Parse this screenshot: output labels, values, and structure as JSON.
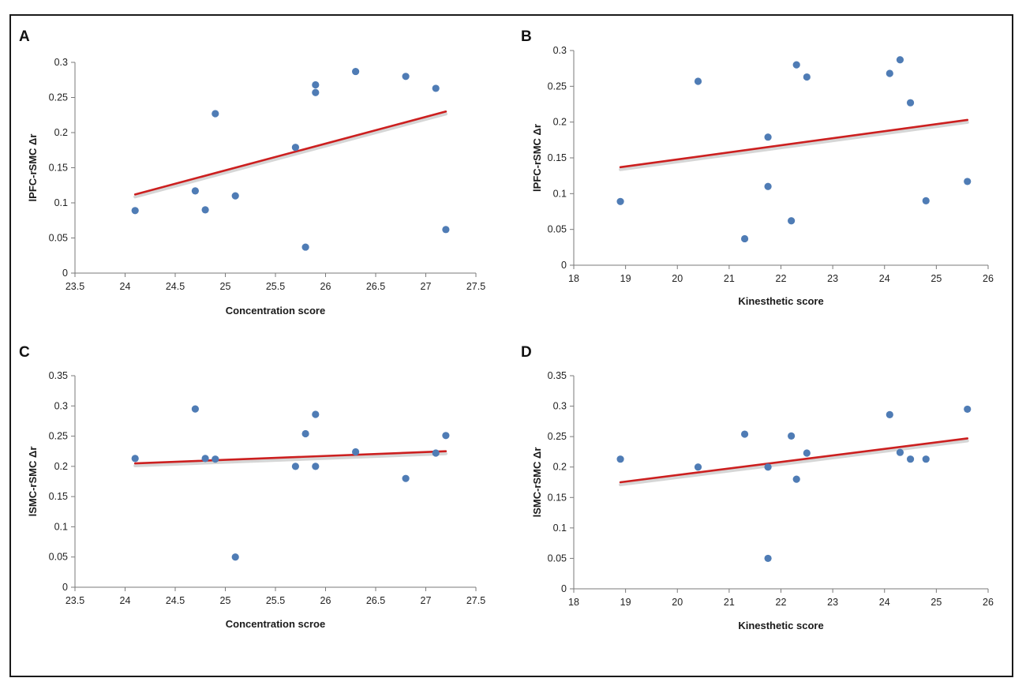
{
  "colors": {
    "point": "#4f7cb5",
    "trend": "#cc1f1f",
    "trend_shadow": "#c9c9c9",
    "axis": "#7a7a7a"
  },
  "chart_data": [
    {
      "panel": "A",
      "type": "scatter",
      "xlabel": "Concentration score",
      "ylabel": "lPFC-rSMC  Δr",
      "xlim": [
        23.5,
        27.5
      ],
      "ylim": [
        0,
        0.3
      ],
      "xticks": [
        "23.5",
        "24",
        "24.5",
        "25",
        "25.5",
        "26",
        "26.5",
        "27",
        "27.5"
      ],
      "yticks": [
        "0",
        "0.05",
        "0.1",
        "0.15",
        "0.2",
        "0.25",
        "0.3"
      ],
      "points": [
        [
          24.1,
          0.089
        ],
        [
          24.7,
          0.117
        ],
        [
          24.8,
          0.09
        ],
        [
          24.9,
          0.227
        ],
        [
          25.1,
          0.11
        ],
        [
          25.7,
          0.179
        ],
        [
          25.8,
          0.037
        ],
        [
          25.9,
          0.268
        ],
        [
          25.9,
          0.257
        ],
        [
          26.3,
          0.287
        ],
        [
          26.8,
          0.28
        ],
        [
          27.1,
          0.263
        ],
        [
          27.2,
          0.062
        ]
      ],
      "trendline": [
        [
          24.1,
          0.112
        ],
        [
          27.2,
          0.23
        ]
      ]
    },
    {
      "panel": "B",
      "type": "scatter",
      "xlabel": "Kinesthetic  score",
      "ylabel": "lPFC-rSMC  Δr",
      "xlim": [
        18,
        26
      ],
      "ylim": [
        0,
        0.3
      ],
      "xticks": [
        "18",
        "19",
        "20",
        "21",
        "22",
        "23",
        "24",
        "25",
        "26"
      ],
      "yticks": [
        "0",
        "0.05",
        "0.1",
        "0.15",
        "0.2",
        "0.25",
        "0.3"
      ],
      "points": [
        [
          18.9,
          0.089
        ],
        [
          20.4,
          0.257
        ],
        [
          21.3,
          0.037
        ],
        [
          21.75,
          0.179
        ],
        [
          21.75,
          0.11
        ],
        [
          22.2,
          0.062
        ],
        [
          22.3,
          0.28
        ],
        [
          22.5,
          0.263
        ],
        [
          24.1,
          0.268
        ],
        [
          24.3,
          0.287
        ],
        [
          24.5,
          0.227
        ],
        [
          24.8,
          0.09
        ],
        [
          25.6,
          0.117
        ]
      ],
      "trendline": [
        [
          18.9,
          0.137
        ],
        [
          25.6,
          0.203
        ]
      ]
    },
    {
      "panel": "C",
      "type": "scatter",
      "xlabel": "Concentration scroe",
      "ylabel": "lSMC-rSMC Δr",
      "xlim": [
        23.5,
        27.5
      ],
      "ylim": [
        0,
        0.35
      ],
      "xticks": [
        "23.5",
        "24",
        "24.5",
        "25",
        "25.5",
        "26",
        "26.5",
        "27",
        "27.5"
      ],
      "yticks": [
        "0",
        "0.05",
        "0.1",
        "0.15",
        "0.2",
        "0.25",
        "0.3",
        "0.35"
      ],
      "points": [
        [
          24.1,
          0.213
        ],
        [
          24.7,
          0.295
        ],
        [
          24.8,
          0.213
        ],
        [
          24.9,
          0.212
        ],
        [
          25.1,
          0.05
        ],
        [
          25.7,
          0.2
        ],
        [
          25.8,
          0.254
        ],
        [
          25.9,
          0.286
        ],
        [
          25.9,
          0.2
        ],
        [
          26.3,
          0.224
        ],
        [
          26.8,
          0.18
        ],
        [
          27.1,
          0.222
        ],
        [
          27.2,
          0.251
        ]
      ],
      "trendline": [
        [
          24.1,
          0.205
        ],
        [
          27.2,
          0.225
        ]
      ]
    },
    {
      "panel": "D",
      "type": "scatter",
      "xlabel": "Kinesthetic score",
      "ylabel": "lSMC-rSMC Δr",
      "xlim": [
        18,
        26
      ],
      "ylim": [
        0,
        0.35
      ],
      "xticks": [
        "18",
        "19",
        "20",
        "21",
        "22",
        "23",
        "24",
        "25",
        "26"
      ],
      "yticks": [
        "0",
        "0.05",
        "0.1",
        "0.15",
        "0.2",
        "0.25",
        "0.3",
        "0.35"
      ],
      "points": [
        [
          18.9,
          0.213
        ],
        [
          20.4,
          0.2
        ],
        [
          21.3,
          0.254
        ],
        [
          21.75,
          0.2
        ],
        [
          21.75,
          0.05
        ],
        [
          22.2,
          0.251
        ],
        [
          22.3,
          0.18
        ],
        [
          22.5,
          0.223
        ],
        [
          24.1,
          0.286
        ],
        [
          24.3,
          0.224
        ],
        [
          24.5,
          0.213
        ],
        [
          24.8,
          0.213
        ],
        [
          25.6,
          0.295
        ]
      ],
      "trendline": [
        [
          18.9,
          0.175
        ],
        [
          25.6,
          0.247
        ]
      ]
    }
  ]
}
